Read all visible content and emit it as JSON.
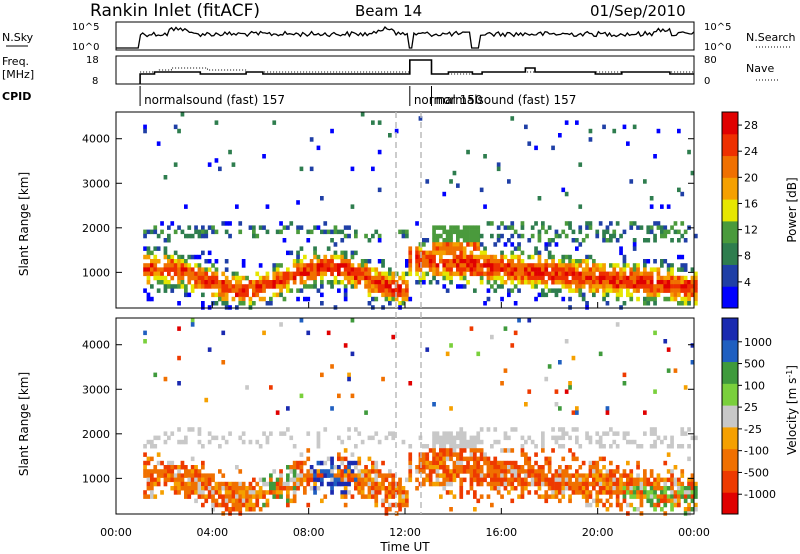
{
  "header": {
    "station": "Rankin Inlet (fitACF)",
    "beam": "Beam 14",
    "date": "01/Sep/2010"
  },
  "strip_labels": {
    "nsky": "N.Sky",
    "nsearch": "N.Search",
    "freq": "Freq.",
    "freq_unit": "[MHz]",
    "nave": "Nave",
    "cpid": "CPID"
  },
  "strip_ticks": {
    "nsky_left": [
      "10^5",
      "10^0"
    ],
    "nsky_right": [
      "10^5",
      "10^0"
    ],
    "freq_left": [
      "18",
      "8"
    ],
    "nave_right": [
      "80",
      "0"
    ]
  },
  "cpid_segments": [
    {
      "label": "normalsound (fast) 157",
      "start": 1.0,
      "end": 12.2
    },
    {
      "label": "normal 150",
      "start": 12.2,
      "end": 13.1
    },
    {
      "label": "normalsound (fast) 157",
      "start": 13.1,
      "end": 24.0
    }
  ],
  "colors": {
    "power": [
      "#0000ff",
      "#1f3fa6",
      "#2e7d4e",
      "#4a9a3c",
      "#e6e600",
      "#f5a000",
      "#f07000",
      "#ee3000",
      "#e00000"
    ],
    "velocity": [
      "#e00000",
      "#ee3a00",
      "#f07000",
      "#f5a000",
      "#c8c8c8",
      "#7ad03c",
      "#3f9a3c",
      "#1f5fc0",
      "#1a2ab0"
    ]
  },
  "chart_data": [
    {
      "type": "heatmap",
      "name": "power-panel",
      "ylabel": "Slant Range [km]",
      "yticks": [
        "1000",
        "2000",
        "3000",
        "4000"
      ],
      "ylim": [
        200,
        4600
      ],
      "xlim": [
        0,
        24
      ],
      "colorbar_label": "Power [dB]",
      "colorbar_ticks": [
        "4",
        "8",
        "12",
        "16",
        "20",
        "24",
        "28"
      ],
      "colorbar_range": [
        0,
        30
      ]
    },
    {
      "type": "heatmap",
      "name": "velocity-panel",
      "ylabel": "Slant Range [km]",
      "yticks": [
        "1000",
        "2000",
        "3000",
        "4000"
      ],
      "ylim": [
        200,
        4600
      ],
      "xlim": [
        0,
        24
      ],
      "colorbar_label": "Velocity [m s^-1]",
      "colorbar_ticks": [
        "1000",
        "500",
        "100",
        "25",
        "-25",
        "-100",
        "-500",
        "-1000"
      ]
    }
  ],
  "xaxis": {
    "ticks": [
      "00:00",
      "04:00",
      "08:00",
      "12:00",
      "16:00",
      "20:00",
      "00:00"
    ],
    "label": "Time UT"
  }
}
